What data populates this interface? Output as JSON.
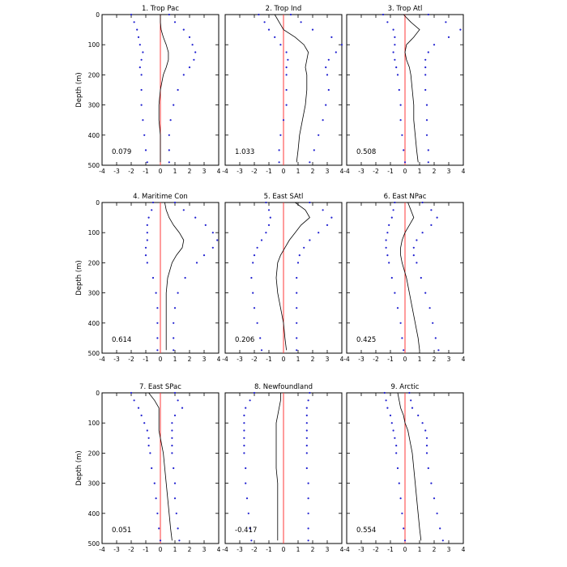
{
  "figure": {
    "ylabel": "Depth (m)",
    "colors": {
      "mean": "#000000",
      "bounds": "#1f1fd0",
      "zero": "#ff3a3a",
      "frame": "#000000"
    }
  },
  "chart_data": [
    {
      "type": "line",
      "title": "1. Trop Pac",
      "value_label": "0.079",
      "xlim": [
        -4,
        4
      ],
      "ylim": [
        0,
        500
      ],
      "x_ticks": [
        "-4",
        "-3",
        "-2",
        "-1",
        "0",
        "1",
        "2",
        "3",
        "4"
      ],
      "y_ticks": [
        "0",
        "100",
        "200",
        "300",
        "400",
        "500"
      ],
      "depth": [
        0,
        25,
        50,
        75,
        100,
        125,
        150,
        175,
        200,
        250,
        300,
        350,
        400,
        450,
        490
      ],
      "series": [
        {
          "values": [
            0.0,
            0.0,
            0.05,
            0.2,
            0.4,
            0.55,
            0.55,
            0.4,
            0.2,
            0.0,
            -0.1,
            -0.1,
            0.0,
            0.0,
            0.0
          ]
        },
        {
          "values": [
            -2.0,
            -1.8,
            -1.6,
            -1.5,
            -1.4,
            -1.2,
            -1.3,
            -1.4,
            -1.3,
            -1.3,
            -1.3,
            -1.2,
            -1.1,
            -1.0,
            -0.9
          ]
        },
        {
          "values": [
            0.6,
            1.0,
            1.6,
            2.0,
            2.2,
            2.4,
            2.3,
            2.0,
            1.6,
            1.2,
            0.9,
            0.7,
            0.6,
            0.6,
            0.6
          ]
        }
      ]
    },
    {
      "type": "line",
      "title": "2. Trop Ind",
      "value_label": "1.033",
      "xlim": [
        -4,
        4
      ],
      "ylim": [
        0,
        500
      ],
      "x_ticks": [
        "-4",
        "-3",
        "-2",
        "-1",
        "0",
        "1",
        "2",
        "3",
        "4"
      ],
      "y_ticks": [
        "0",
        "100",
        "200",
        "300",
        "400",
        "500"
      ],
      "depth": [
        0,
        25,
        50,
        75,
        100,
        125,
        150,
        175,
        200,
        250,
        300,
        350,
        400,
        450,
        490
      ],
      "series": [
        {
          "values": [
            -0.6,
            -0.3,
            0.0,
            0.8,
            1.4,
            1.7,
            1.6,
            1.5,
            1.6,
            1.6,
            1.5,
            1.3,
            1.1,
            1.0,
            0.9
          ]
        },
        {
          "values": [
            -1.7,
            -1.3,
            -1.0,
            -0.6,
            -0.2,
            0.2,
            0.3,
            0.2,
            0.2,
            0.2,
            0.2,
            0.0,
            -0.2,
            -0.3,
            -0.3
          ]
        },
        {
          "values": [
            0.5,
            1.2,
            2.0,
            3.3,
            4.0,
            3.6,
            3.1,
            2.9,
            3.0,
            3.1,
            2.9,
            2.7,
            2.4,
            2.1,
            1.8
          ]
        }
      ]
    },
    {
      "type": "line",
      "title": "3. Trop Atl",
      "value_label": "0.508",
      "xlim": [
        -4,
        4
      ],
      "ylim": [
        0,
        500
      ],
      "x_ticks": [
        "-4",
        "-3",
        "-2",
        "-1",
        "0",
        "1",
        "2",
        "3",
        "4"
      ],
      "y_ticks": [
        "0",
        "100",
        "200",
        "300",
        "400",
        "500"
      ],
      "depth": [
        0,
        25,
        50,
        75,
        100,
        125,
        150,
        175,
        200,
        250,
        300,
        350,
        400,
        450,
        490
      ],
      "series": [
        {
          "values": [
            -0.1,
            0.4,
            1.0,
            0.6,
            0.1,
            0.0,
            0.1,
            0.3,
            0.4,
            0.5,
            0.6,
            0.6,
            0.7,
            0.8,
            0.9
          ]
        },
        {
          "values": [
            -1.5,
            -1.2,
            -0.8,
            -0.7,
            -0.7,
            -0.8,
            -0.7,
            -0.6,
            -0.5,
            -0.4,
            -0.3,
            -0.3,
            -0.2,
            -0.1,
            0.0
          ]
        },
        {
          "values": [
            1.6,
            2.8,
            3.8,
            3.0,
            2.0,
            1.6,
            1.4,
            1.4,
            1.4,
            1.4,
            1.5,
            1.5,
            1.5,
            1.6,
            1.6
          ]
        }
      ]
    },
    {
      "type": "line",
      "title": "4. Maritime Con",
      "value_label": "0.614",
      "xlim": [
        -4,
        4
      ],
      "ylim": [
        0,
        500
      ],
      "x_ticks": [
        "-4",
        "-3",
        "-2",
        "-1",
        "0",
        "1",
        "2",
        "3",
        "4"
      ],
      "y_ticks": [
        "0",
        "100",
        "200",
        "300",
        "400",
        "500"
      ],
      "depth": [
        0,
        25,
        50,
        75,
        100,
        125,
        150,
        175,
        200,
        250,
        300,
        350,
        400,
        450,
        490
      ],
      "series": [
        {
          "values": [
            0.3,
            0.4,
            0.6,
            0.9,
            1.3,
            1.6,
            1.5,
            1.1,
            0.8,
            0.5,
            0.4,
            0.4,
            0.4,
            0.4,
            0.4
          ]
        },
        {
          "values": [
            -0.5,
            -0.6,
            -0.8,
            -0.9,
            -0.9,
            -0.9,
            -1.0,
            -1.0,
            -0.9,
            -0.5,
            -0.3,
            -0.2,
            -0.2,
            -0.2,
            -0.2
          ]
        },
        {
          "values": [
            1.0,
            1.6,
            2.4,
            3.1,
            3.6,
            3.9,
            3.6,
            3.0,
            2.5,
            1.7,
            1.2,
            1.0,
            0.9,
            0.9,
            0.9
          ]
        }
      ]
    },
    {
      "type": "line",
      "title": "5. East SAtl",
      "value_label": "0.206",
      "xlim": [
        -4,
        4
      ],
      "ylim": [
        0,
        500
      ],
      "x_ticks": [
        "-4",
        "-3",
        "-2",
        "-1",
        "0",
        "1",
        "2",
        "3",
        "4"
      ],
      "y_ticks": [
        "0",
        "100",
        "200",
        "300",
        "400",
        "500"
      ],
      "depth": [
        0,
        25,
        50,
        75,
        100,
        125,
        150,
        175,
        200,
        250,
        300,
        350,
        400,
        450,
        490
      ],
      "series": [
        {
          "values": [
            0.8,
            1.5,
            1.8,
            1.2,
            0.8,
            0.4,
            0.1,
            -0.2,
            -0.4,
            -0.5,
            -0.4,
            -0.2,
            0.0,
            0.1,
            0.2
          ]
        },
        {
          "values": [
            -1.2,
            -1.0,
            -0.9,
            -1.0,
            -1.2,
            -1.5,
            -1.8,
            -2.0,
            -2.1,
            -2.2,
            -2.1,
            -2.0,
            -1.8,
            -1.6,
            -1.5
          ]
        },
        {
          "values": [
            1.8,
            2.7,
            3.3,
            3.0,
            2.4,
            1.8,
            1.4,
            1.1,
            1.0,
            0.9,
            0.9,
            0.9,
            0.9,
            0.9,
            0.9
          ]
        }
      ]
    },
    {
      "type": "line",
      "title": "6. East NPac",
      "value_label": "0.425",
      "xlim": [
        -4,
        4
      ],
      "ylim": [
        0,
        500
      ],
      "x_ticks": [
        "-4",
        "-3",
        "-2",
        "-1",
        "0",
        "1",
        "2",
        "3",
        "4"
      ],
      "y_ticks": [
        "0",
        "100",
        "200",
        "300",
        "400",
        "500"
      ],
      "depth": [
        0,
        25,
        50,
        75,
        100,
        125,
        150,
        175,
        200,
        250,
        300,
        350,
        400,
        450,
        490
      ],
      "series": [
        {
          "values": [
            0.2,
            0.4,
            0.6,
            0.3,
            0.0,
            -0.2,
            -0.3,
            -0.3,
            -0.2,
            0.1,
            0.3,
            0.5,
            0.7,
            0.9,
            1.0
          ]
        },
        {
          "values": [
            -0.7,
            -0.8,
            -0.9,
            -1.1,
            -1.2,
            -1.3,
            -1.3,
            -1.2,
            -1.1,
            -0.9,
            -0.7,
            -0.5,
            -0.3,
            -0.2,
            -0.1
          ]
        },
        {
          "values": [
            1.2,
            1.8,
            2.2,
            1.8,
            1.2,
            0.8,
            0.6,
            0.6,
            0.8,
            1.1,
            1.4,
            1.7,
            1.9,
            2.1,
            2.3
          ]
        }
      ]
    },
    {
      "type": "line",
      "title": "7. East SPac",
      "value_label": "0.051",
      "xlim": [
        -4,
        4
      ],
      "ylim": [
        0,
        500
      ],
      "x_ticks": [
        "-4",
        "-3",
        "-2",
        "-1",
        "0",
        "1",
        "2",
        "3",
        "4"
      ],
      "y_ticks": [
        "0",
        "100",
        "200",
        "300",
        "400",
        "500"
      ],
      "depth": [
        0,
        25,
        50,
        75,
        100,
        125,
        150,
        175,
        200,
        250,
        300,
        350,
        400,
        450,
        490
      ],
      "series": [
        {
          "values": [
            -0.8,
            -0.4,
            -0.1,
            -0.1,
            -0.1,
            -0.1,
            0.0,
            0.1,
            0.2,
            0.3,
            0.4,
            0.5,
            0.6,
            0.7,
            0.8
          ]
        },
        {
          "values": [
            -2.0,
            -1.8,
            -1.5,
            -1.3,
            -1.1,
            -0.9,
            -0.8,
            -0.8,
            -0.7,
            -0.6,
            -0.4,
            -0.3,
            -0.2,
            -0.1,
            0.0
          ]
        },
        {
          "values": [
            1.0,
            1.2,
            1.5,
            1.0,
            0.8,
            0.8,
            0.8,
            0.8,
            0.8,
            0.9,
            1.0,
            1.0,
            1.1,
            1.2,
            1.3
          ]
        }
      ]
    },
    {
      "type": "line",
      "title": "8. Newfoundland",
      "value_label": "-0.417",
      "xlim": [
        -4,
        4
      ],
      "ylim": [
        0,
        500
      ],
      "x_ticks": [
        "-4",
        "-3",
        "-2",
        "-1",
        "0",
        "1",
        "2",
        "3",
        "4"
      ],
      "y_ticks": [
        "0",
        "100",
        "200",
        "300",
        "400",
        "500"
      ],
      "depth": [
        0,
        25,
        50,
        75,
        100,
        125,
        150,
        175,
        200,
        250,
        300,
        350,
        400,
        450,
        490
      ],
      "series": [
        {
          "values": [
            -0.2,
            -0.2,
            -0.3,
            -0.4,
            -0.5,
            -0.5,
            -0.5,
            -0.5,
            -0.5,
            -0.5,
            -0.4,
            -0.4,
            -0.4,
            -0.4,
            -0.4
          ]
        },
        {
          "values": [
            -2.0,
            -2.3,
            -2.6,
            -2.7,
            -2.7,
            -2.7,
            -2.7,
            -2.7,
            -2.7,
            -2.6,
            -2.6,
            -2.5,
            -2.4,
            -2.3,
            -2.2
          ]
        },
        {
          "values": [
            1.8,
            1.7,
            1.6,
            1.6,
            1.6,
            1.6,
            1.6,
            1.6,
            1.6,
            1.6,
            1.7,
            1.7,
            1.7,
            1.7,
            1.7
          ]
        }
      ]
    },
    {
      "type": "line",
      "title": "9. Arctic",
      "value_label": "0.554",
      "xlim": [
        -4,
        4
      ],
      "ylim": [
        0,
        500
      ],
      "x_ticks": [
        "-4",
        "-3",
        "-2",
        "-1",
        "0",
        "1",
        "2",
        "3",
        "4"
      ],
      "y_ticks": [
        "0",
        "100",
        "200",
        "300",
        "400",
        "500"
      ],
      "depth": [
        0,
        25,
        50,
        75,
        100,
        125,
        150,
        175,
        200,
        250,
        300,
        350,
        400,
        450,
        490
      ],
      "series": [
        {
          "values": [
            -0.5,
            -0.4,
            -0.3,
            -0.1,
            0.0,
            0.2,
            0.3,
            0.4,
            0.5,
            0.6,
            0.7,
            0.8,
            0.9,
            1.0,
            1.1
          ]
        },
        {
          "values": [
            -1.4,
            -1.3,
            -1.2,
            -1.0,
            -0.9,
            -0.8,
            -0.7,
            -0.6,
            -0.6,
            -0.5,
            -0.4,
            -0.3,
            -0.2,
            -0.1,
            0.0
          ]
        },
        {
          "values": [
            0.3,
            0.4,
            0.5,
            0.9,
            1.2,
            1.4,
            1.5,
            1.5,
            1.5,
            1.6,
            1.8,
            2.0,
            2.2,
            2.4,
            2.6
          ]
        }
      ]
    }
  ]
}
